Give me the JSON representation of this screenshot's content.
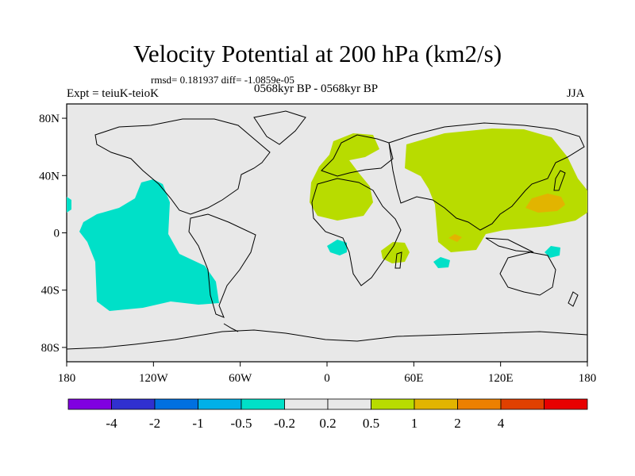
{
  "title": "Velocity Potential at 200 hPa (km2/s)",
  "stats": "rmsd= 0.181937 diff= -1.0859e-05",
  "experiment": "Expt = teiuK-teioK",
  "period": "0568kyr BP - 0568kyr BP",
  "season": "JJA",
  "map": {
    "background_color": "#e8e8e8",
    "lat_ticks": [
      "80N",
      "40N",
      "0",
      "40S",
      "80S"
    ],
    "lon_ticks": [
      "180",
      "120W",
      "60W",
      "0",
      "60E",
      "120E",
      "180"
    ],
    "regions": [
      {
        "name": "east-pacific-negative-anomaly",
        "level": "-0.5",
        "color": "#00e0c8"
      },
      {
        "name": "europe-north-africa-positive-anomaly",
        "level": "0.2",
        "color": "#b8dc00"
      },
      {
        "name": "asia-positive-anomaly",
        "level": "0.2",
        "color": "#b8dc00"
      },
      {
        "name": "west-pacific-maximum",
        "level": "0.5",
        "color": "#e2b400"
      },
      {
        "name": "bay-of-bengal-maximum",
        "level": "0.5",
        "color": "#e2b400"
      }
    ]
  },
  "colorbar": {
    "colors": [
      "#8000e0",
      "#3030d0",
      "#0070e0",
      "#00b0e8",
      "#00e0c8",
      "#e8e8e8",
      "#e8e8e8",
      "#b8dc00",
      "#e2b400",
      "#ec8000",
      "#e04000",
      "#e80000"
    ],
    "labels": [
      "-4",
      "-2",
      "-1",
      "-0.5",
      "-0.2",
      "0.2",
      "0.5",
      "1",
      "2",
      "4"
    ]
  }
}
